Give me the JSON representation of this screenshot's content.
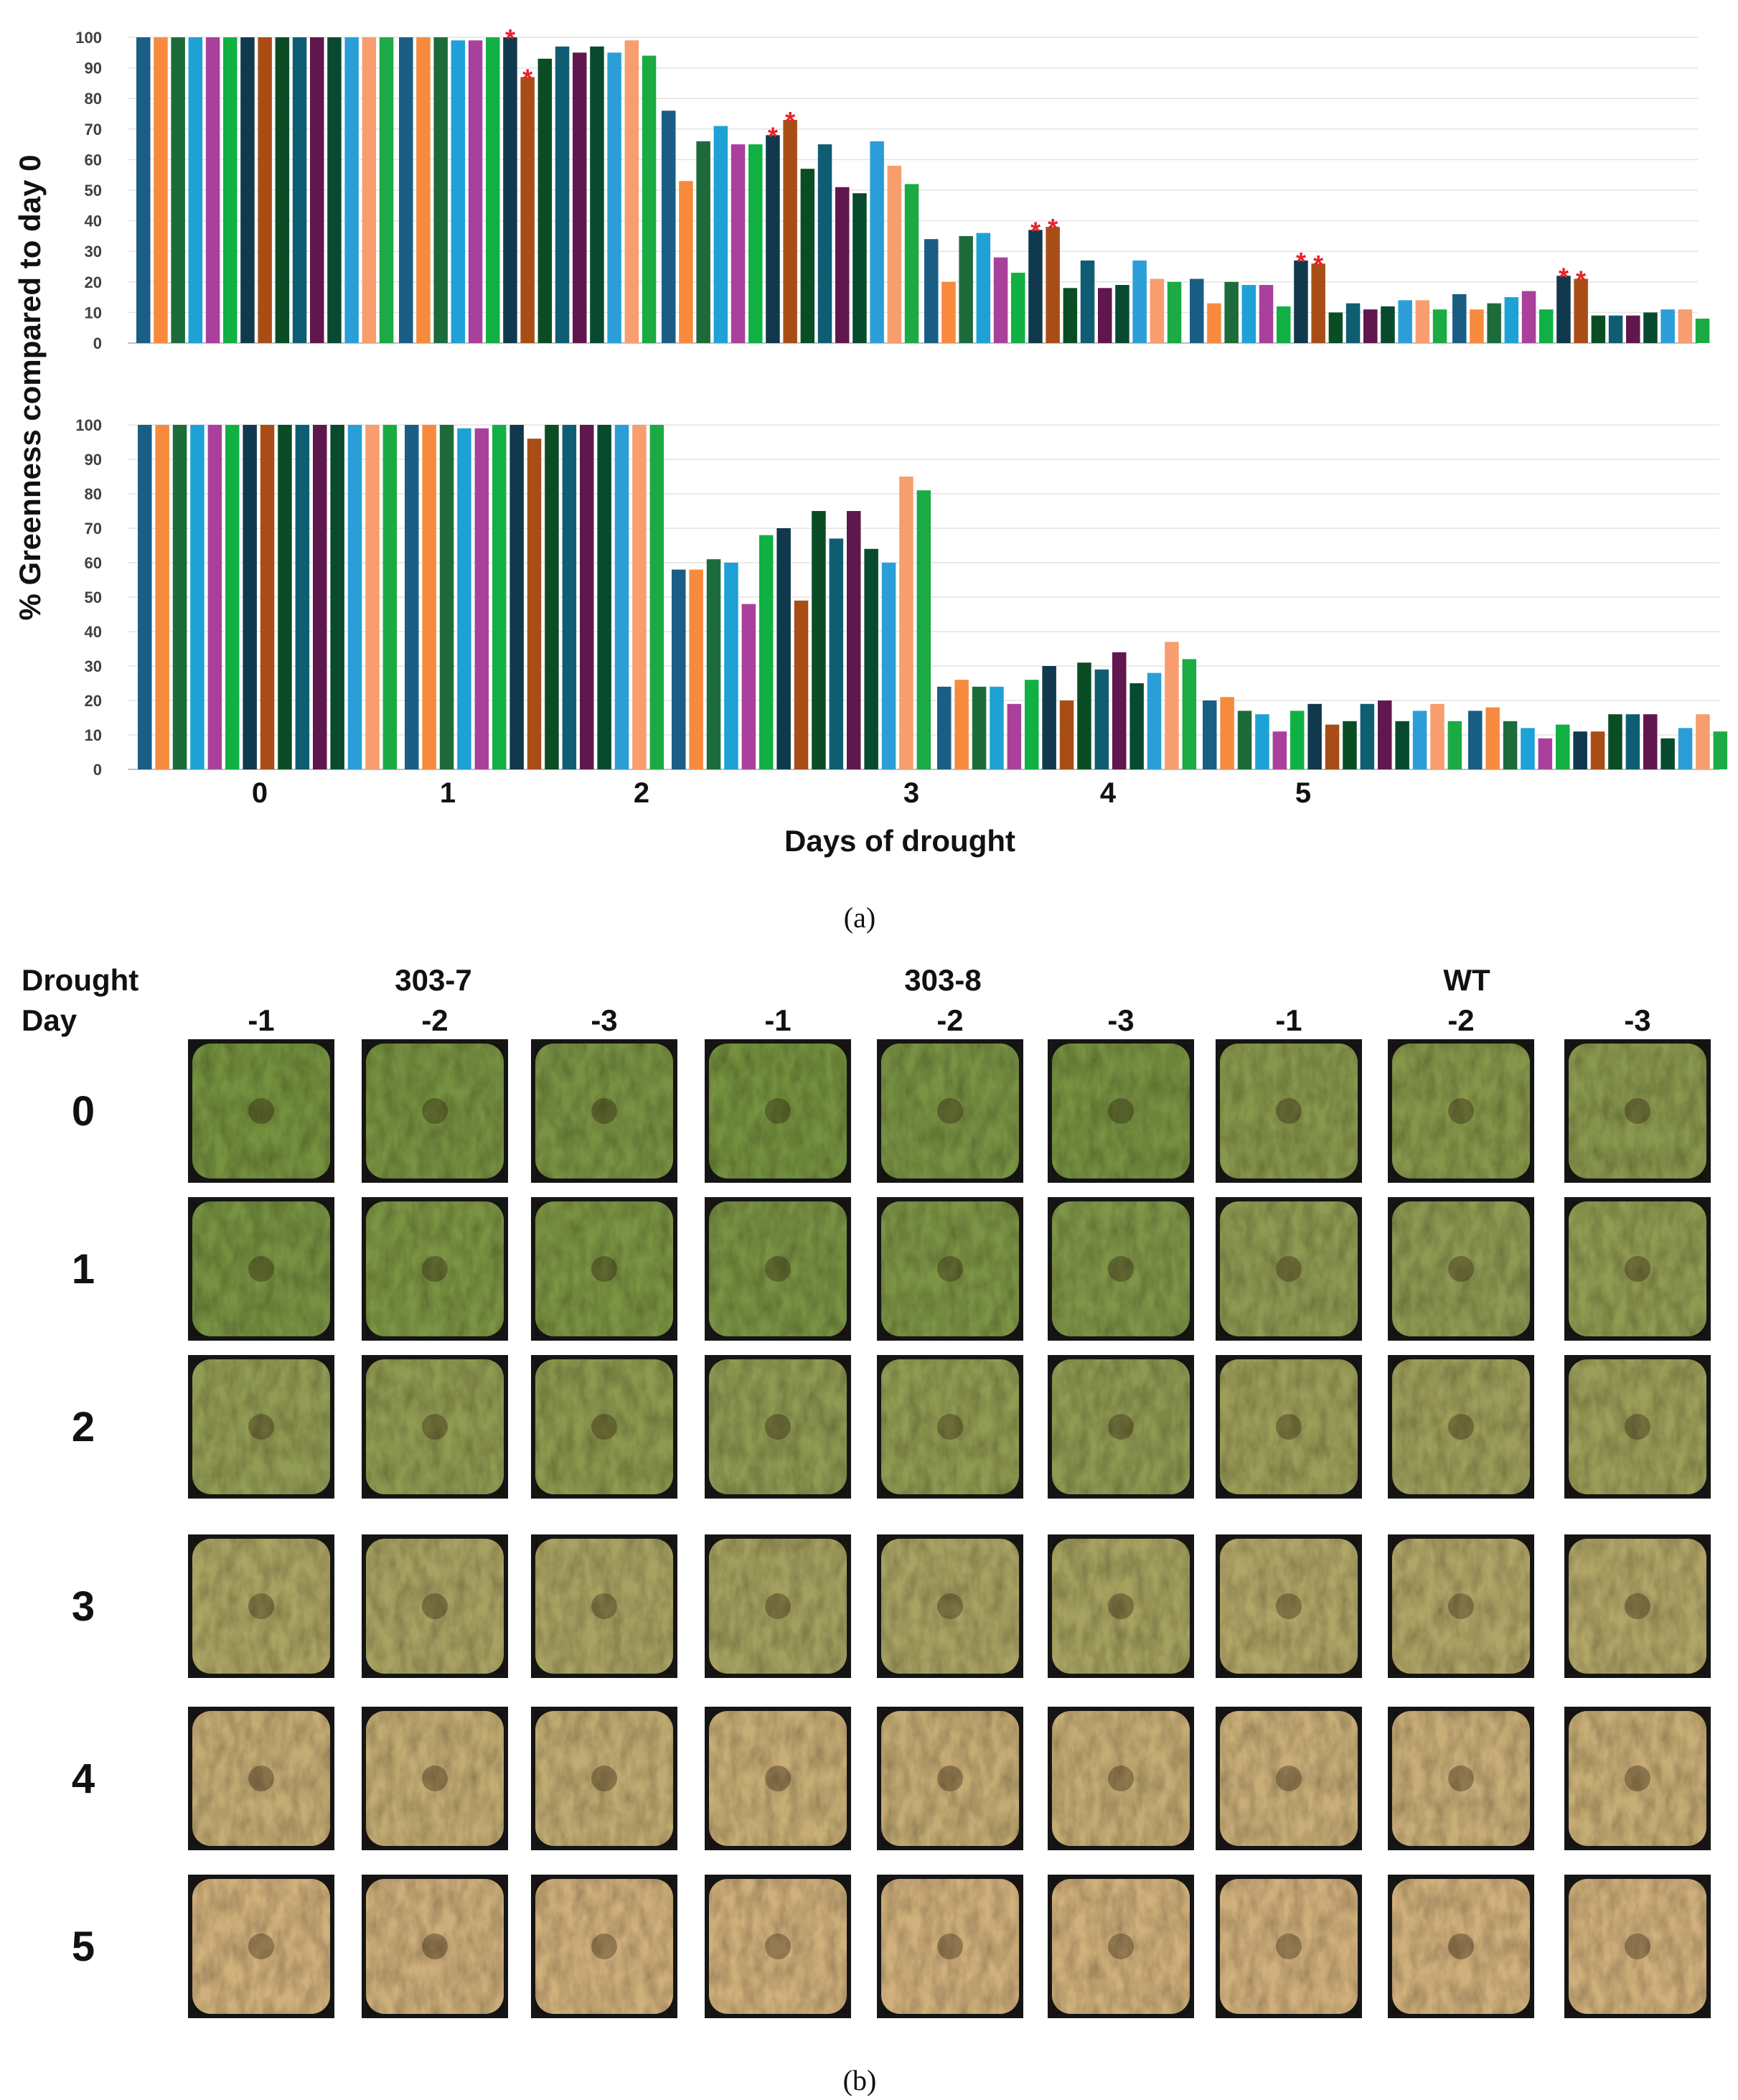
{
  "chart_data": [
    {
      "type": "bar",
      "panel": "top",
      "ylabel": "% Greenness compared to day 0",
      "ylim": [
        0,
        100
      ],
      "yticks": [
        0,
        10,
        20,
        30,
        40,
        50,
        60,
        70,
        80,
        90,
        100
      ],
      "grid": true,
      "series_colors": [
        "#1a5d85",
        "#f78a3d",
        "#1d6b3a",
        "#1ea1d6",
        "#a9409c",
        "#11b043",
        "#11394d",
        "#a94d17",
        "#0a4d25",
        "#0f5d73",
        "#60174d",
        "#074a30",
        "#2b9ed8",
        "#f79d6e",
        "#1caa45"
      ],
      "groups": [
        [
          100,
          100,
          100,
          100,
          100,
          100,
          100,
          100,
          100,
          100,
          100,
          100,
          100,
          100,
          100
        ],
        [
          100,
          100,
          100,
          99,
          99,
          100,
          100,
          87,
          93,
          97,
          95,
          97,
          95,
          99,
          94
        ],
        [
          76,
          53,
          66,
          71,
          65,
          65,
          68,
          73,
          57,
          65,
          51,
          49,
          66,
          58,
          52
        ],
        [
          34,
          20,
          35,
          36,
          28,
          23,
          37,
          38,
          18,
          27,
          18,
          19,
          27,
          21,
          20
        ],
        [
          21,
          13,
          20,
          19,
          19,
          12,
          27,
          26,
          10,
          13,
          11,
          12,
          14,
          14,
          11
        ],
        [
          16,
          11,
          13,
          15,
          17,
          11,
          22,
          21,
          9,
          9,
          9,
          10,
          11,
          11,
          8
        ]
      ],
      "annotations": [
        {
          "group": 1,
          "text": "*"
        },
        {
          "group": 1,
          "text": "*"
        },
        {
          "group": 2,
          "text": "*"
        },
        {
          "group": 2,
          "text": "*"
        },
        {
          "group": 3,
          "text": "*"
        },
        {
          "group": 3,
          "text": "*"
        },
        {
          "group": 4,
          "text": "*"
        },
        {
          "group": 4,
          "text": "*"
        },
        {
          "group": 5,
          "text": "*"
        },
        {
          "group": 5,
          "text": "*"
        }
      ]
    },
    {
      "type": "bar",
      "panel": "bottom",
      "ylabel": "% Greenness compared to day 0",
      "xlabel": "Days of drought",
      "xtick_labels": [
        "0",
        "1",
        "2",
        "3",
        "4",
        "5"
      ],
      "ylim": [
        0,
        100
      ],
      "yticks": [
        0,
        10,
        20,
        30,
        40,
        50,
        60,
        70,
        80,
        90,
        100
      ],
      "grid": true,
      "series_colors": [
        "#1a5d85",
        "#f78a3d",
        "#1d6b3a",
        "#1ea1d6",
        "#a9409c",
        "#11b043",
        "#11394d",
        "#a94d17",
        "#0a4d25",
        "#0f5d73",
        "#60174d",
        "#074a30",
        "#2b9ed8",
        "#f79d6e",
        "#1caa45"
      ],
      "groups": [
        [
          100,
          100,
          100,
          100,
          100,
          100,
          100,
          100,
          100,
          100,
          100,
          100,
          100,
          100,
          100
        ],
        [
          100,
          100,
          100,
          99,
          99,
          100,
          100,
          96,
          100,
          100,
          100,
          100,
          100,
          100,
          100
        ],
        [
          58,
          58,
          61,
          60,
          48,
          68,
          70,
          49,
          75,
          67,
          75,
          64,
          60,
          85,
          81
        ],
        [
          24,
          26,
          24,
          24,
          19,
          26,
          30,
          20,
          31,
          29,
          34,
          25,
          28,
          37,
          32
        ],
        [
          20,
          21,
          17,
          16,
          11,
          17,
          19,
          13,
          14,
          19,
          20,
          14,
          17,
          19,
          14
        ],
        [
          17,
          18,
          14,
          12,
          9,
          13,
          11,
          11,
          16,
          16,
          16,
          9,
          12,
          16,
          11
        ]
      ]
    }
  ],
  "labels": {
    "panel_a": "(a)",
    "panel_b": "(b)",
    "drought": "Drought",
    "day": "Day",
    "line_303_7": "303-7",
    "line_303_8": "303-8",
    "line_wt": "WT"
  },
  "photo_grid": {
    "replicates": [
      "-1",
      "-2",
      "-3",
      "-1",
      "-2",
      "-3",
      "-1",
      "-2",
      "-3"
    ],
    "days": [
      "0",
      "1",
      "2",
      "3",
      "4",
      "5"
    ],
    "greenness": [
      [
        0.9,
        0.88,
        0.86,
        0.9,
        0.86,
        0.88,
        0.72,
        0.74,
        0.7
      ],
      [
        0.88,
        0.84,
        0.84,
        0.86,
        0.82,
        0.8,
        0.66,
        0.66,
        0.64
      ],
      [
        0.62,
        0.64,
        0.68,
        0.66,
        0.64,
        0.66,
        0.54,
        0.52,
        0.54
      ],
      [
        0.4,
        0.42,
        0.42,
        0.46,
        0.42,
        0.44,
        0.34,
        0.34,
        0.34
      ],
      [
        0.16,
        0.18,
        0.2,
        0.14,
        0.16,
        0.16,
        0.12,
        0.12,
        0.14
      ],
      [
        0.06,
        0.08,
        0.06,
        0.06,
        0.06,
        0.06,
        0.05,
        0.06,
        0.06
      ]
    ]
  }
}
